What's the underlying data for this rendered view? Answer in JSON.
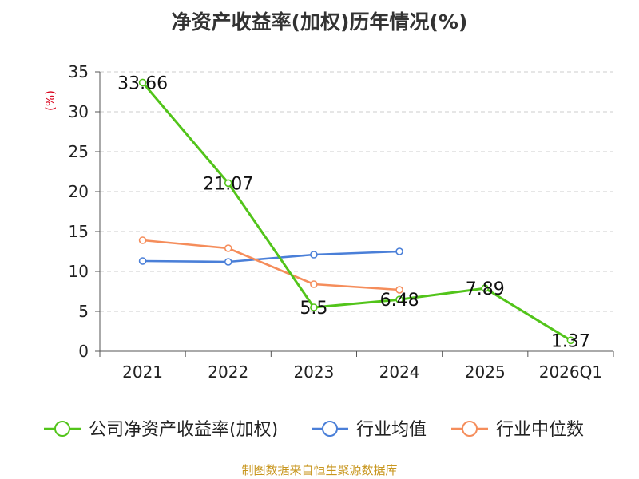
{
  "chart_data": {
    "type": "line",
    "title": "净资产收益率(加权)历年情况(%)",
    "ylabel": "(%)",
    "xlabel": "",
    "ylim": [
      0,
      35
    ],
    "yticks": [
      0,
      5,
      10,
      15,
      20,
      25,
      30,
      35
    ],
    "grid": true,
    "legend_position": "bottom",
    "categories": [
      "2021",
      "2022",
      "2023",
      "2024",
      "2025",
      "2026Q1"
    ],
    "series": [
      {
        "name": "公司净资产收益率(加权)",
        "color": "#52c41a",
        "values": [
          33.66,
          21.07,
          5.5,
          6.48,
          7.89,
          1.37
        ],
        "labels": [
          "33.66",
          "21.07",
          "5.5",
          "6.48",
          "7.89",
          "1.37"
        ]
      },
      {
        "name": "行业均值",
        "color": "#4a7fd8",
        "values": [
          11.3,
          11.2,
          12.1,
          12.5,
          null,
          null
        ]
      },
      {
        "name": "行业中位数",
        "color": "#f58d5b",
        "values": [
          13.9,
          12.9,
          8.4,
          7.7,
          null,
          null
        ]
      }
    ]
  },
  "source": "制图数据来自恒生聚源数据库"
}
